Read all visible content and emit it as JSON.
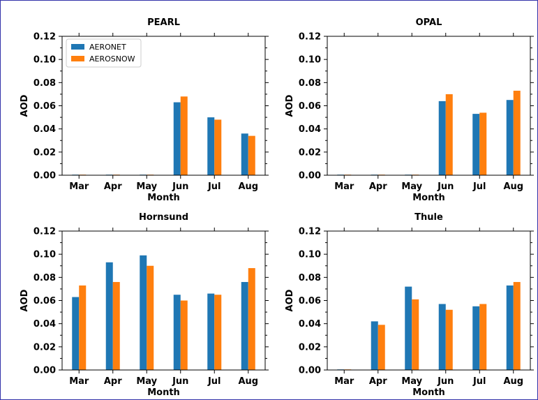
{
  "chart_data": [
    {
      "type": "bar",
      "title": "PEARL",
      "xlabel": "Month",
      "ylabel": "AOD",
      "ylim": [
        0,
        0.12
      ],
      "yticks": [
        "0.00",
        "0.02",
        "0.04",
        "0.06",
        "0.08",
        "0.10",
        "0.12"
      ],
      "categories": [
        "Mar",
        "Apr",
        "May",
        "Jun",
        "Jul",
        "Aug"
      ],
      "series": [
        {
          "name": "AERONET",
          "values": [
            0,
            0,
            0,
            0.063,
            0.05,
            0.036
          ]
        },
        {
          "name": "AEROSNOW",
          "values": [
            0,
            0,
            0,
            0.068,
            0.048,
            0.034
          ]
        }
      ],
      "legend": "top-left"
    },
    {
      "type": "bar",
      "title": "OPAL",
      "xlabel": "Month",
      "ylabel": "AOD",
      "ylim": [
        0,
        0.12
      ],
      "yticks": [
        "0.00",
        "0.02",
        "0.04",
        "0.06",
        "0.08",
        "0.10",
        "0.12"
      ],
      "categories": [
        "Mar",
        "Apr",
        "May",
        "Jun",
        "Jul",
        "Aug"
      ],
      "series": [
        {
          "name": "AERONET",
          "values": [
            0,
            0,
            0,
            0.064,
            0.053,
            0.065
          ]
        },
        {
          "name": "AEROSNOW",
          "values": [
            0,
            0,
            0,
            0.07,
            0.054,
            0.073
          ]
        }
      ]
    },
    {
      "type": "bar",
      "title": "Hornsund",
      "xlabel": "Month",
      "ylabel": "AOD",
      "ylim": [
        0,
        0.12
      ],
      "yticks": [
        "0.00",
        "0.02",
        "0.04",
        "0.06",
        "0.08",
        "0.10",
        "0.12"
      ],
      "categories": [
        "Mar",
        "Apr",
        "May",
        "Jun",
        "Jul",
        "Aug"
      ],
      "series": [
        {
          "name": "AERONET",
          "values": [
            0.063,
            0.093,
            0.099,
            0.065,
            0.066,
            0.076
          ]
        },
        {
          "name": "AEROSNOW",
          "values": [
            0.073,
            0.076,
            0.09,
            0.06,
            0.065,
            0.088
          ]
        }
      ]
    },
    {
      "type": "bar",
      "title": "Thule",
      "xlabel": "Month",
      "ylabel": "AOD",
      "ylim": [
        0,
        0.12
      ],
      "yticks": [
        "0.00",
        "0.02",
        "0.04",
        "0.06",
        "0.08",
        "0.10",
        "0.12"
      ],
      "categories": [
        "Mar",
        "Apr",
        "May",
        "Jun",
        "Jul",
        "Aug"
      ],
      "series": [
        {
          "name": "AERONET",
          "values": [
            0,
            0.042,
            0.072,
            0.057,
            0.055,
            0.073
          ]
        },
        {
          "name": "AEROSNOW",
          "values": [
            0,
            0.039,
            0.061,
            0.052,
            0.057,
            0.076
          ]
        }
      ]
    }
  ],
  "colors": {
    "AERONET": "#1f77b4",
    "AEROSNOW": "#ff7f0e"
  }
}
